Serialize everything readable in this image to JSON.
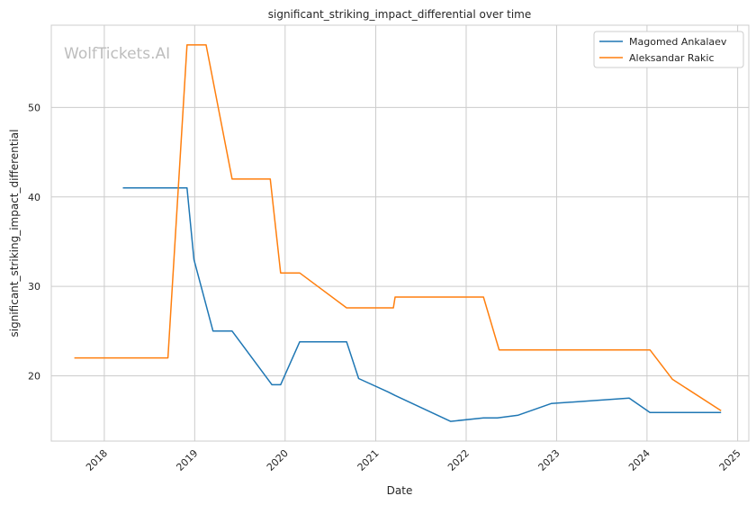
{
  "chart_data": {
    "type": "line",
    "title": "significant_striking_impact_differential over time",
    "xlabel": "Date",
    "ylabel": "significant_striking_impact_differential",
    "watermark": "WolfTickets.AI",
    "x_ticks": [
      "2018",
      "2019",
      "2020",
      "2021",
      "2022",
      "2023",
      "2024",
      "2025"
    ],
    "y_ticks": [
      20,
      30,
      40,
      50
    ],
    "xlim": [
      "2017-06-01",
      "2025-02-15"
    ],
    "ylim": [
      12.7,
      59.2
    ],
    "grid": true,
    "legend_position": "top-right",
    "series": [
      {
        "name": "Magomed Ankalaev",
        "color": "#1f77b4",
        "points": [
          [
            "2018-03-17",
            41.0
          ],
          [
            "2018-12-01",
            41.0
          ],
          [
            "2018-12-29",
            33.0
          ],
          [
            "2019-03-16",
            25.0
          ],
          [
            "2019-06-01",
            25.0
          ],
          [
            "2019-11-09",
            19.0
          ],
          [
            "2019-12-14",
            19.0
          ],
          [
            "2020-02-29",
            23.8
          ],
          [
            "2020-09-05",
            23.8
          ],
          [
            "2020-10-24",
            19.7
          ],
          [
            "2021-02-20",
            18.2
          ],
          [
            "2021-03-20",
            17.8
          ],
          [
            "2021-10-30",
            14.9
          ],
          [
            "2022-03-12",
            15.3
          ],
          [
            "2022-05-07",
            15.3
          ],
          [
            "2022-07-30",
            15.6
          ],
          [
            "2022-12-10",
            16.9
          ],
          [
            "2023-10-21",
            17.5
          ],
          [
            "2024-01-13",
            15.9
          ],
          [
            "2024-10-26",
            15.9
          ]
        ]
      },
      {
        "name": "Aleksandar Rakic",
        "color": "#ff7f0e",
        "points": [
          [
            "2017-09-02",
            22.0
          ],
          [
            "2018-09-15",
            22.0
          ],
          [
            "2018-12-01",
            57.0
          ],
          [
            "2019-02-16",
            57.0
          ],
          [
            "2019-06-01",
            42.0
          ],
          [
            "2019-11-02",
            42.0
          ],
          [
            "2019-12-14",
            31.5
          ],
          [
            "2020-02-29",
            31.5
          ],
          [
            "2020-09-05",
            27.6
          ],
          [
            "2021-03-13",
            27.6
          ],
          [
            "2021-03-20",
            28.8
          ],
          [
            "2022-03-12",
            28.8
          ],
          [
            "2022-05-14",
            22.9
          ],
          [
            "2024-01-13",
            22.9
          ],
          [
            "2024-04-13",
            19.6
          ],
          [
            "2024-10-26",
            16.1
          ]
        ]
      }
    ]
  }
}
